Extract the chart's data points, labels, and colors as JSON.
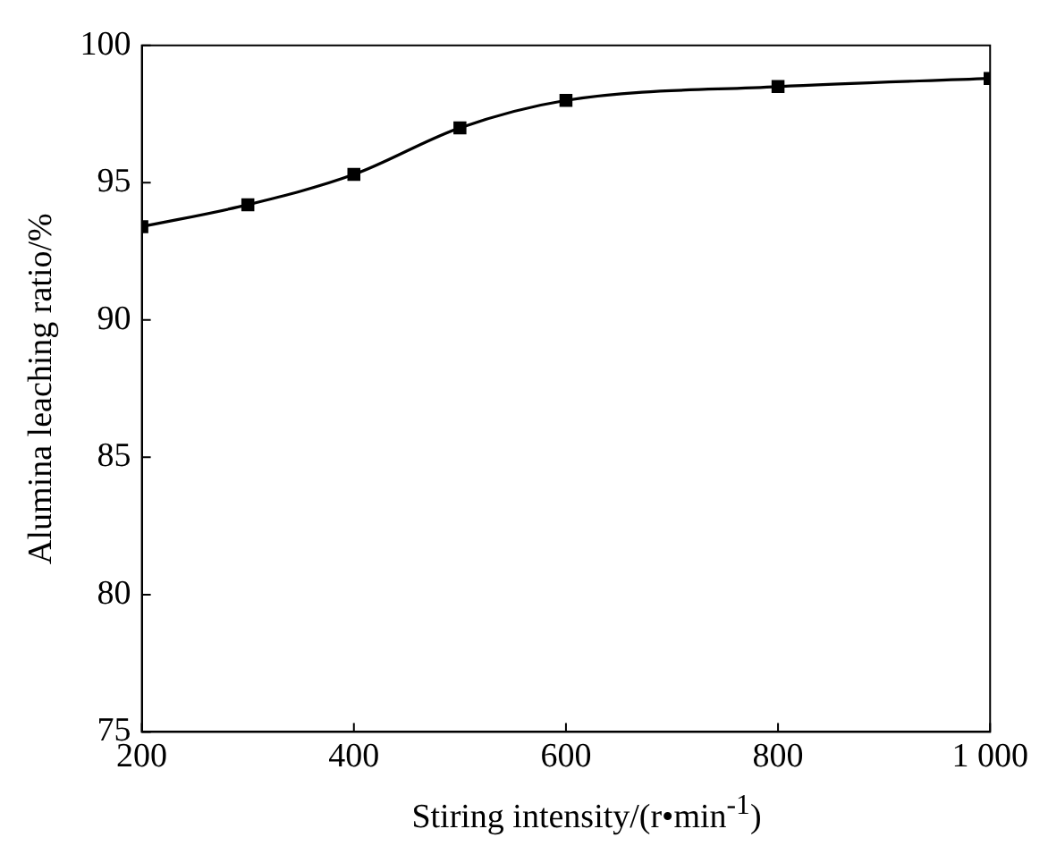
{
  "chart_data": {
    "type": "line",
    "xlabel": "Stiring intensity/(r•min$^{-1}$)",
    "ylabel": "Alumina leaching ratio/%",
    "x": [
      200,
      300,
      400,
      500,
      600,
      800,
      1000
    ],
    "series": [
      {
        "color": "#000000",
        "values": [
          93.4,
          94.2,
          95.3,
          97.0,
          98.0,
          98.5,
          98.8
        ]
      }
    ],
    "xlim": [
      200,
      1000
    ],
    "xticks": [
      200,
      400,
      600,
      800,
      {
        "value": 1000,
        "label": "1 000"
      }
    ],
    "ylim": [
      75,
      100
    ],
    "yticks": [
      75,
      80,
      85,
      90,
      95,
      100
    ],
    "grid": false,
    "legend": false,
    "marker": "square",
    "line_style": "solid"
  }
}
